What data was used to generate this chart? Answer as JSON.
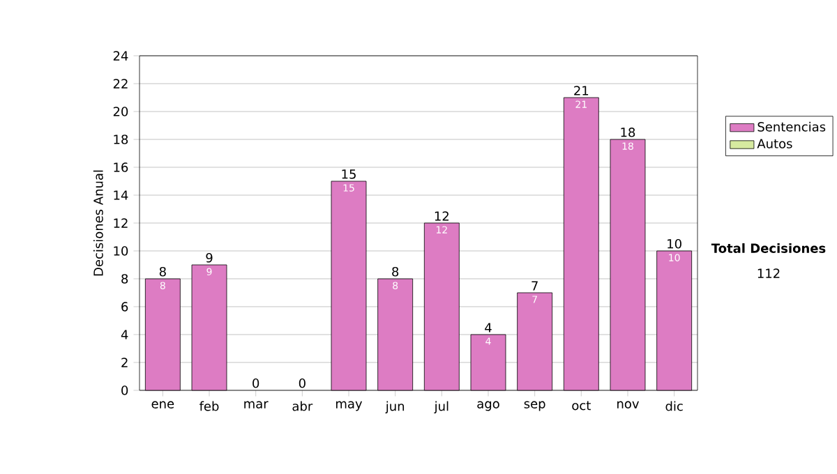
{
  "chart_data": {
    "type": "bar",
    "stacked": true,
    "ylabel": "Decisiones Anual",
    "categories": [
      "ene",
      "feb",
      "mar",
      "abr",
      "may",
      "jun",
      "jul",
      "ago",
      "sep",
      "oct",
      "nov",
      "dic"
    ],
    "series": [
      {
        "name": "Sentencias",
        "color": "#dd7cc3",
        "values": [
          8,
          9,
          0,
          0,
          15,
          8,
          12,
          4,
          7,
          21,
          18,
          10
        ],
        "value_labels": [
          "8",
          "9",
          null,
          null,
          "15",
          "8",
          "12",
          "4",
          "7",
          "21",
          "18",
          "10"
        ]
      },
      {
        "name": "Autos",
        "color": "#d6eaa0",
        "values": [
          null,
          null,
          null,
          null,
          null,
          null,
          null,
          null,
          null,
          null,
          null,
          null
        ]
      }
    ],
    "totals": [
      "8",
      "9",
      "0",
      "0",
      "15",
      "8",
      "12",
      "4",
      "7",
      "21",
      "18",
      "10"
    ],
    "ylim": [
      0,
      24
    ],
    "yticks": [
      0,
      2,
      4,
      6,
      8,
      10,
      12,
      14,
      16,
      18,
      20,
      22,
      24
    ],
    "grid": "y",
    "legend": "right",
    "annotations": [
      "Total Decisiones",
      "112"
    ]
  }
}
